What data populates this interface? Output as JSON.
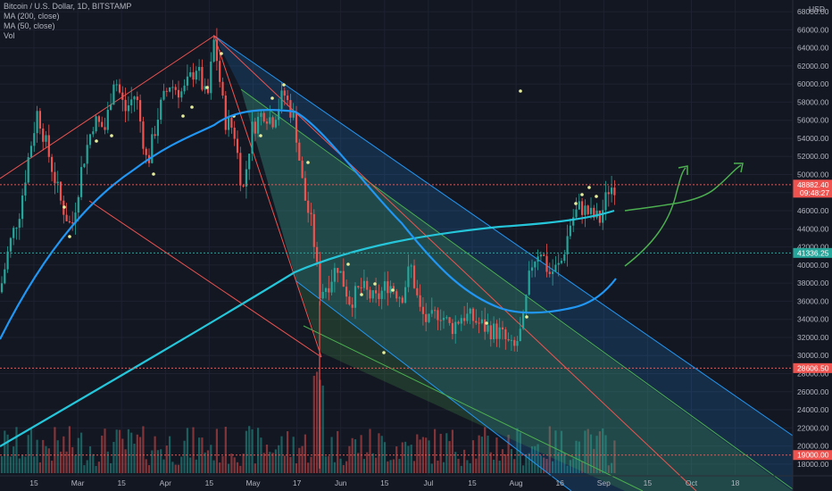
{
  "legend": {
    "symbol": "Bitcoin / U.S. Dollar, 1D, BITSTAMP",
    "ma200": "MA (200, close)",
    "ma50": "MA (50, close)",
    "vol": "Vol"
  },
  "price_axis": {
    "unit_label": "USD",
    "ticks": [
      "18000.00",
      "20000.00",
      "22000.00",
      "24000.00",
      "26000.00",
      "28000.00",
      "30000.00",
      "32000.00",
      "34000.00",
      "36000.00",
      "38000.00",
      "40000.00",
      "42000.00",
      "44000.00",
      "46000.00",
      "48000.00",
      "50000.00",
      "52000.00",
      "54000.00",
      "56000.00",
      "58000.00",
      "60000.00",
      "62000.00",
      "64000.00",
      "66000.00",
      "68000.00"
    ],
    "tags": [
      {
        "label": "48882.40",
        "sub": "09:48:27",
        "value": 48882.4,
        "color": "#ef5350"
      },
      {
        "label": "41336.25",
        "value": 41336.25,
        "color": "#26a69a"
      },
      {
        "label": "28606.50",
        "value": 28606.5,
        "color": "#ef5350"
      },
      {
        "label": "19000.00",
        "value": 19000,
        "color": "#ef5350"
      }
    ]
  },
  "time_axis": {
    "ticks": [
      "15",
      "Mar",
      "15",
      "Apr",
      "15",
      "May",
      "17",
      "Jun",
      "15",
      "Jul",
      "15",
      "Aug",
      "16",
      "Sep",
      "15",
      "Oct",
      "18"
    ]
  },
  "chart_data": {
    "type": "candlestick",
    "symbol": "Bitcoin / U.S. Dollar",
    "interval": "1D",
    "ylim": [
      18000,
      68000
    ],
    "grid": true,
    "series": [
      {
        "name": "MA (200, close)",
        "color": "#26c6da"
      },
      {
        "name": "MA (50, close)",
        "color": "#2196f3"
      },
      {
        "name": "Vol"
      }
    ],
    "horizontal_levels": [
      48882.4,
      41336.25,
      28606.5,
      19000
    ],
    "price_path": [
      [
        0,
        37000
      ],
      [
        10,
        42000
      ],
      [
        22,
        46000
      ],
      [
        32,
        52000
      ],
      [
        42,
        57000
      ],
      [
        55,
        52000
      ],
      [
        68,
        47000
      ],
      [
        80,
        44000
      ],
      [
        92,
        51000
      ],
      [
        105,
        56000
      ],
      [
        118,
        55000
      ],
      [
        128,
        61000
      ],
      [
        140,
        57000
      ],
      [
        152,
        59000
      ],
      [
        165,
        51000
      ],
      [
        178,
        57000
      ],
      [
        190,
        60000
      ],
      [
        205,
        59000
      ],
      [
        220,
        62000
      ],
      [
        232,
        58000
      ],
      [
        240,
        65000
      ],
      [
        252,
        56000
      ],
      [
        262,
        55000
      ],
      [
        272,
        48000
      ],
      [
        282,
        55000
      ],
      [
        295,
        57000
      ],
      [
        305,
        56000
      ],
      [
        318,
        59000
      ],
      [
        330,
        56000
      ],
      [
        340,
        48000
      ],
      [
        350,
        44000
      ],
      [
        358,
        37000
      ],
      [
        368,
        38000
      ],
      [
        378,
        40000
      ],
      [
        392,
        36000
      ],
      [
        405,
        37500
      ],
      [
        420,
        36000
      ],
      [
        435,
        38000
      ],
      [
        450,
        36500
      ],
      [
        460,
        40000
      ],
      [
        470,
        35000
      ],
      [
        480,
        33500
      ],
      [
        492,
        35000
      ],
      [
        505,
        33000
      ],
      [
        518,
        34500
      ],
      [
        530,
        34000
      ],
      [
        545,
        33000
      ],
      [
        560,
        32500
      ],
      [
        575,
        30500
      ],
      [
        585,
        33000
      ],
      [
        595,
        40000
      ],
      [
        605,
        42000
      ],
      [
        615,
        39000
      ],
      [
        628,
        40000
      ],
      [
        640,
        45000
      ],
      [
        650,
        46500
      ],
      [
        662,
        45500
      ],
      [
        672,
        45000
      ],
      [
        682,
        48500
      ],
      [
        690,
        48882
      ]
    ]
  }
}
